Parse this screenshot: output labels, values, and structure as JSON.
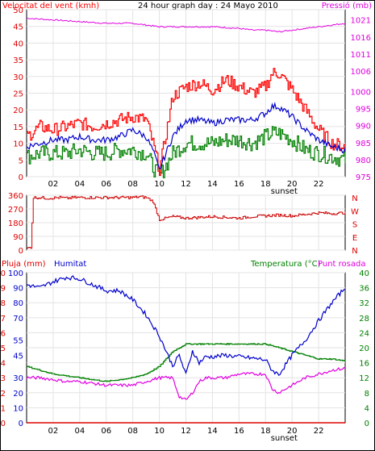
{
  "title": "24 hour graph day : 24 Mayo 2010",
  "x_tick_labels": [
    "02",
    "04",
    "06",
    "08",
    "10",
    "12",
    "14",
    "16",
    "18",
    "20",
    "22"
  ],
  "sunset_label": "sunset",
  "chart_data": [
    {
      "type": "line",
      "panel": "wind-pressure",
      "left_axis_label": "Velocitat del vent (kmh)",
      "right_axis_label": "Pressió (mb)",
      "y_left_ticks": [
        "0",
        "5",
        "10",
        "15",
        "20",
        "25",
        "30",
        "35",
        "40",
        "45",
        "50"
      ],
      "y_right_ticks": [
        "975",
        "980",
        "985",
        "990",
        "995",
        "1000",
        "1006",
        "1011",
        "1016",
        "1021"
      ],
      "ylim_left": [
        0,
        50
      ],
      "ylim_right": [
        975,
        1024
      ],
      "x_range_hours": [
        0,
        24
      ],
      "colors": {
        "gust": "#ff0000",
        "average": "#0000cc",
        "min": "#008000",
        "pressure": "#e000e0"
      },
      "series": [
        {
          "key": "gust",
          "x": [
            0,
            1,
            2,
            3,
            4,
            5,
            6,
            7,
            8,
            9,
            9.5,
            10,
            11,
            12,
            13,
            14,
            15,
            16,
            17,
            18,
            18.5,
            19,
            20,
            21,
            22,
            23,
            24
          ],
          "values": [
            12,
            15,
            14,
            15,
            16,
            15,
            16,
            17,
            18,
            17,
            10,
            2,
            24,
            27,
            28,
            26,
            29,
            27,
            25,
            27,
            31,
            31,
            26,
            20,
            14,
            10,
            9
          ]
        },
        {
          "key": "average",
          "x": [
            0,
            1,
            2,
            3,
            4,
            5,
            6,
            7,
            8,
            9,
            9.5,
            10,
            11,
            12,
            13,
            14,
            15,
            16,
            17,
            18,
            18.5,
            19,
            20,
            21,
            22,
            23,
            24
          ],
          "values": [
            9,
            10,
            11,
            11,
            12,
            11,
            11,
            12,
            14,
            12,
            8,
            2,
            12,
            17,
            17,
            16,
            17,
            17,
            17,
            19,
            21,
            21,
            18,
            14,
            11,
            9,
            8
          ]
        },
        {
          "key": "min",
          "x": [
            0,
            1,
            2,
            3,
            4,
            5,
            6,
            7,
            8,
            9,
            9.5,
            10,
            11,
            12,
            13,
            14,
            15,
            16,
            17,
            18,
            18.5,
            19,
            20,
            21,
            22,
            23,
            24
          ],
          "values": [
            6,
            7,
            7,
            7,
            8,
            7,
            7,
            8,
            8,
            7,
            3,
            0,
            7,
            10,
            10,
            10,
            11,
            11,
            10,
            12,
            13,
            13,
            11,
            8,
            7,
            6,
            5
          ]
        },
        {
          "key": "pressure",
          "x": [
            0,
            2,
            4,
            6,
            8,
            9,
            10,
            12,
            14,
            16,
            17,
            18,
            19,
            20,
            21,
            22,
            23,
            24
          ],
          "values": [
            1021.5,
            1021,
            1020.5,
            1020,
            1020,
            1019.5,
            1019,
            1019,
            1019,
            1018.5,
            1018,
            1018,
            1017.5,
            1018,
            1018.5,
            1019,
            1019.5,
            1020
          ]
        }
      ]
    },
    {
      "type": "line",
      "panel": "wind-direction",
      "y_left_ticks": [
        "0",
        "90",
        "180",
        "270",
        "360"
      ],
      "direction_labels": [
        "N",
        "W",
        "S",
        "E",
        "N"
      ],
      "ylim": [
        0,
        360
      ],
      "colors": {
        "direction": "#cc0000"
      },
      "series": [
        {
          "key": "direction",
          "x": [
            0,
            0.3,
            0.5,
            1,
            1.5,
            2.5,
            3,
            3.5,
            4,
            5,
            6,
            7,
            8,
            8.5,
            9,
            9.5,
            10,
            11,
            12,
            13,
            14,
            15,
            16,
            17,
            18,
            19,
            20,
            21,
            22,
            23,
            24
          ],
          "values": [
            10,
            20,
            345,
            345,
            340,
            345,
            340,
            345,
            345,
            345,
            345,
            345,
            345,
            350,
            345,
            320,
            200,
            220,
            210,
            215,
            220,
            215,
            210,
            220,
            225,
            230,
            225,
            235,
            245,
            240,
            245
          ]
        }
      ]
    },
    {
      "type": "line",
      "panel": "rain-humidity-temperature",
      "labels": [
        "Pluja (mm)",
        "Humitat",
        "Temperatura (°C)",
        "Punt rosada"
      ],
      "y_left_rain_ticks": [
        "0",
        "1",
        "2",
        "3",
        "4",
        "5",
        "6",
        "7",
        "8",
        "9",
        "10"
      ],
      "y_left_humidity_ticks": [
        "0",
        "10",
        "20",
        "30",
        "45",
        "55",
        "70",
        "80",
        "90",
        "100"
      ],
      "y_right_temp_ticks": [
        "0",
        "4",
        "8",
        "12",
        "16",
        "20",
        "24",
        "28",
        "32",
        "36",
        "40"
      ],
      "ylim_humidity": [
        0,
        100
      ],
      "ylim_temperature": [
        0,
        40
      ],
      "colors": {
        "rain": "#dd0000",
        "humidity": "#0000cc",
        "temperature": "#008000",
        "dewpoint": "#e000e0"
      },
      "series": [
        {
          "key": "humidity",
          "x": [
            0,
            1,
            2,
            3,
            4,
            5,
            6,
            7,
            8,
            9,
            10,
            11,
            11.5,
            12,
            12.5,
            13,
            13.5,
            14,
            15,
            16,
            17,
            18,
            18.5,
            19,
            20,
            21,
            22,
            23,
            24
          ],
          "values": [
            92,
            90,
            94,
            97,
            96,
            92,
            88,
            88,
            82,
            72,
            58,
            38,
            45,
            32,
            48,
            40,
            44,
            44,
            45,
            44,
            43,
            42,
            35,
            32,
            45,
            55,
            68,
            80,
            90
          ]
        },
        {
          "key": "temperature",
          "x": [
            0,
            1,
            2,
            3,
            4,
            5,
            6,
            7,
            8,
            9,
            10,
            10.5,
            11,
            12,
            13,
            14,
            15,
            16,
            17,
            18,
            18.5,
            19,
            20,
            21,
            22,
            23,
            24
          ],
          "values": [
            15,
            14,
            13,
            12.5,
            12,
            11.5,
            11,
            11.5,
            12,
            13,
            15,
            17,
            19,
            21,
            21,
            21,
            21,
            21,
            21,
            21,
            20.5,
            20,
            19,
            18,
            17,
            17,
            16.5
          ]
        },
        {
          "key": "dewpoint",
          "x": [
            0,
            1,
            2,
            3,
            4,
            5,
            6,
            7,
            8,
            9,
            10,
            11,
            11.5,
            12,
            12.5,
            13,
            13.5,
            14,
            15,
            16,
            17,
            18,
            18.5,
            19,
            20,
            21,
            22,
            23,
            24
          ],
          "values": [
            12,
            12,
            11.5,
            11,
            11,
            10.5,
            10,
            10,
            10,
            11,
            12,
            12,
            7,
            6,
            8,
            11,
            12,
            12,
            12,
            13,
            13,
            13,
            9,
            8,
            10,
            12,
            13,
            14,
            14.5
          ]
        },
        {
          "key": "rain",
          "x": [
            0,
            24
          ],
          "values": [
            0,
            0
          ]
        }
      ]
    }
  ]
}
